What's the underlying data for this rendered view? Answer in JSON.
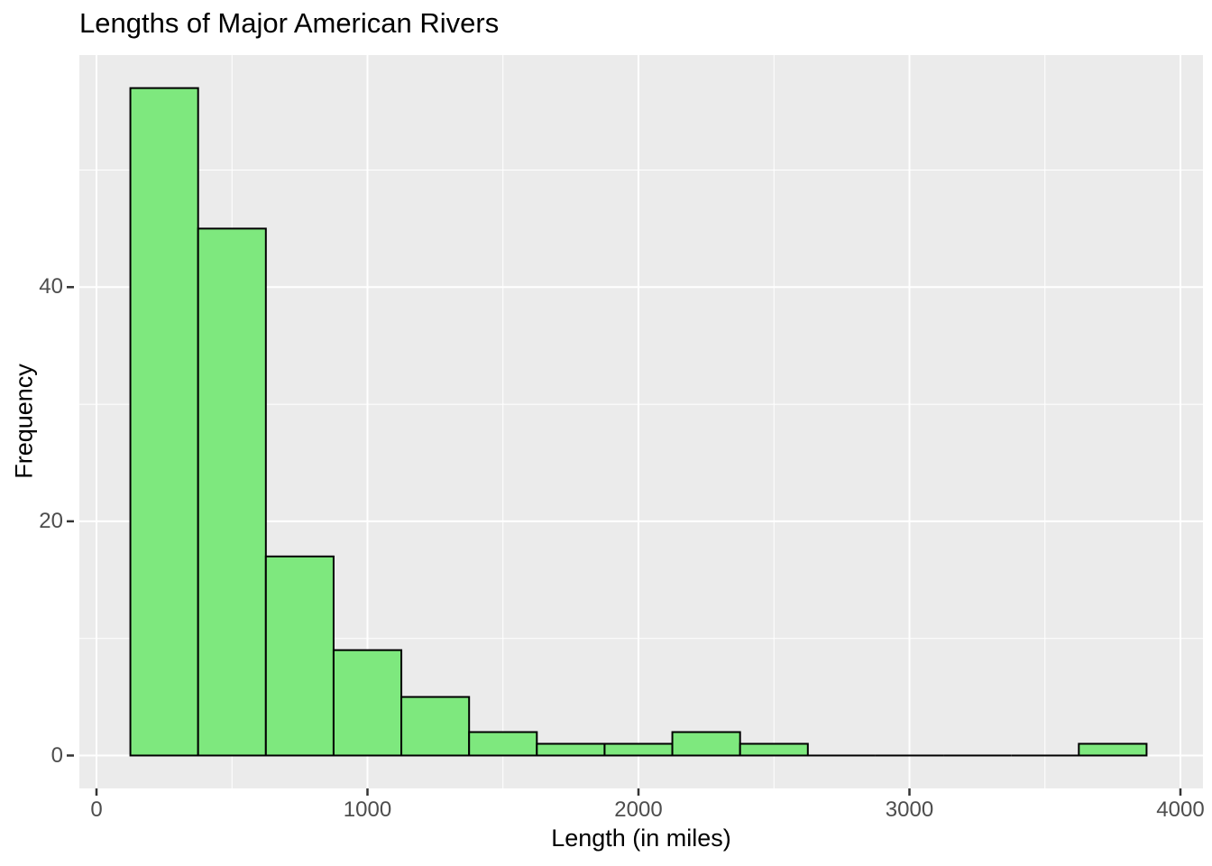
{
  "page": {
    "background_color": "#FFFFFF"
  },
  "chart_data": {
    "type": "histogram",
    "title": "Lengths of Major American Rivers",
    "xlabel": "Length (in miles)",
    "ylabel": "Frequency",
    "binwidth": 250,
    "bins": [
      {
        "start": 125,
        "end": 375,
        "count": 57
      },
      {
        "start": 375,
        "end": 625,
        "count": 45
      },
      {
        "start": 625,
        "end": 875,
        "count": 17
      },
      {
        "start": 875,
        "end": 1125,
        "count": 9
      },
      {
        "start": 1125,
        "end": 1375,
        "count": 5
      },
      {
        "start": 1375,
        "end": 1625,
        "count": 2
      },
      {
        "start": 1625,
        "end": 1875,
        "count": 1
      },
      {
        "start": 1875,
        "end": 2125,
        "count": 1
      },
      {
        "start": 2125,
        "end": 2375,
        "count": 2
      },
      {
        "start": 2375,
        "end": 2625,
        "count": 1
      },
      {
        "start": 2625,
        "end": 2875,
        "count": 0
      },
      {
        "start": 2875,
        "end": 3125,
        "count": 0
      },
      {
        "start": 3125,
        "end": 3375,
        "count": 0
      },
      {
        "start": 3375,
        "end": 3625,
        "count": 0
      },
      {
        "start": 3625,
        "end": 3875,
        "count": 1
      }
    ],
    "x_major_ticks": [
      0,
      1000,
      2000,
      3000,
      4000
    ],
    "x_minor_gridlines": [
      500,
      1500,
      2500,
      3500
    ],
    "y_major_ticks": [
      0,
      20,
      40
    ],
    "y_minor_gridlines": [
      10,
      30,
      50
    ],
    "xlim": [
      -62.5,
      4062.5
    ],
    "ylim": [
      -2.85,
      59.85
    ],
    "grid": "major and minor, white on grey panel",
    "legend_position": "none",
    "colors": {
      "bar_fill": "#7EE87E",
      "bar_stroke": "#000000",
      "panel_background": "#EBEBEB",
      "gridline": "#FFFFFF",
      "tick_mark": "#333333",
      "tick_label": "#4D4D4D",
      "title_text": "#000000",
      "axis_title_text": "#000000"
    }
  }
}
